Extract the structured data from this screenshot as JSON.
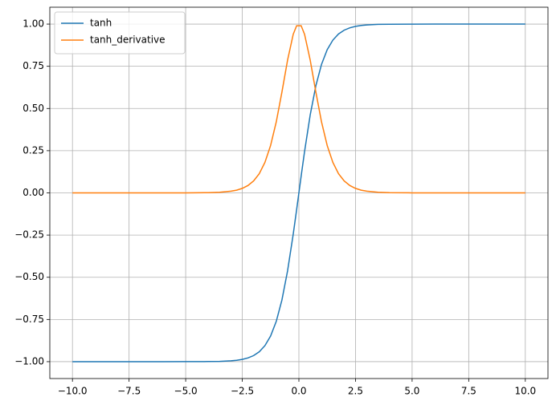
{
  "chart_data": {
    "type": "line",
    "x": [
      -10,
      -8,
      -6,
      -5,
      -4,
      -3.5,
      -3,
      -2.75,
      -2.5,
      -2.25,
      -2,
      -1.75,
      -1.5,
      -1.25,
      -1,
      -0.75,
      -0.5,
      -0.25,
      -0.1,
      0.1,
      0.25,
      0.5,
      0.75,
      1,
      1.25,
      1.5,
      1.75,
      2,
      2.25,
      2.5,
      2.75,
      3,
      3.5,
      4,
      5,
      6,
      8,
      10
    ],
    "series": [
      {
        "name": "tanh",
        "color": "#1f77b4",
        "values": [
          -1,
          -1,
          -1,
          -0.9999,
          -0.9993,
          -0.9982,
          -0.9951,
          -0.9919,
          -0.9866,
          -0.978,
          -0.964,
          -0.9414,
          -0.9051,
          -0.8483,
          -0.7616,
          -0.6351,
          -0.4621,
          -0.2449,
          -0.0997,
          0.0997,
          0.2449,
          0.4621,
          0.6351,
          0.7616,
          0.8483,
          0.9051,
          0.9414,
          0.964,
          0.978,
          0.9866,
          0.9919,
          0.9951,
          0.9982,
          0.9993,
          0.9999,
          1,
          1,
          1
        ]
      },
      {
        "name": "tanh_derivative",
        "color": "#ff7f0e",
        "values": [
          0,
          0,
          0,
          0.0002,
          0.0013,
          0.0036,
          0.0099,
          0.0161,
          0.0266,
          0.0436,
          0.0707,
          0.1137,
          0.1807,
          0.2805,
          0.42,
          0.5966,
          0.7864,
          0.94,
          0.9901,
          0.9901,
          0.94,
          0.7864,
          0.5966,
          0.42,
          0.2805,
          0.1807,
          0.1137,
          0.0707,
          0.0436,
          0.0266,
          0.0161,
          0.0099,
          0.0036,
          0.0013,
          0.0002,
          0,
          0,
          0
        ]
      }
    ],
    "xlim": [
      -11,
      11
    ],
    "ylim": [
      -1.1,
      1.1
    ],
    "xticks": [
      {
        "value": -10,
        "label": "−10.0"
      },
      {
        "value": -7.5,
        "label": "−7.5"
      },
      {
        "value": -5,
        "label": "−5.0"
      },
      {
        "value": -2.5,
        "label": "−2.5"
      },
      {
        "value": 0,
        "label": "0.0"
      },
      {
        "value": 2.5,
        "label": "2.5"
      },
      {
        "value": 5,
        "label": "5.0"
      },
      {
        "value": 7.5,
        "label": "7.5"
      },
      {
        "value": 10,
        "label": "10.0"
      }
    ],
    "yticks": [
      {
        "value": -1,
        "label": "−1.00"
      },
      {
        "value": -0.75,
        "label": "−0.75"
      },
      {
        "value": -0.5,
        "label": "−0.50"
      },
      {
        "value": -0.25,
        "label": "−0.25"
      },
      {
        "value": 0,
        "label": "0.00"
      },
      {
        "value": 0.25,
        "label": "0.25"
      },
      {
        "value": 0.5,
        "label": "0.50"
      },
      {
        "value": 0.75,
        "label": "0.75"
      },
      {
        "value": 1,
        "label": "1.00"
      }
    ],
    "grid": true,
    "legend": "upper-left"
  }
}
